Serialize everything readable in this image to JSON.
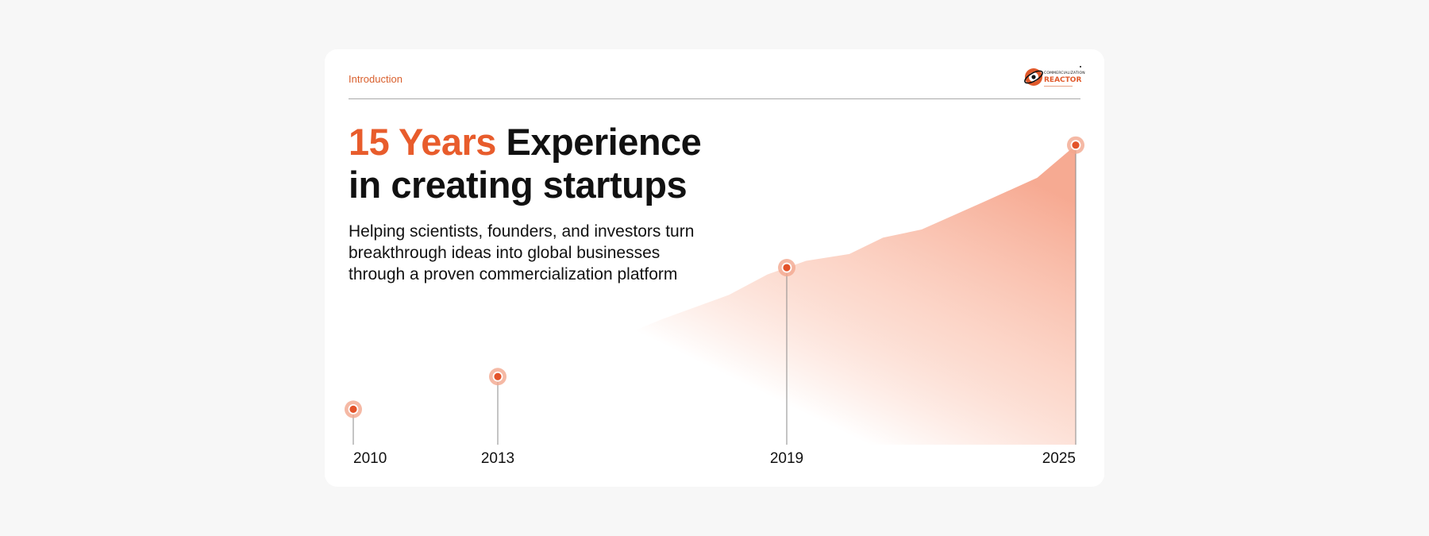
{
  "header": {
    "section_label": "Introduction",
    "logo_text_top": "COMMERCIALIZATION",
    "logo_text_main": "REACTOR"
  },
  "headline": {
    "accent": "15 Years",
    "rest_line1": " Experience",
    "line2": "in creating startups"
  },
  "subtitle": "Helping scientists, founders, and investors turn breakthrough ideas into global businesses through a proven commercialization platform",
  "colors": {
    "accent": "#e85c2c",
    "area_top": "#f6a58c",
    "text": "#111111",
    "background": "#f7f7f7"
  },
  "chart_data": {
    "type": "area",
    "title": "",
    "xlabel": "",
    "ylabel": "",
    "xlim": [
      2010,
      2025
    ],
    "ylim": [
      0,
      100
    ],
    "x": [
      2010,
      2011,
      2012,
      2012.5,
      2013,
      2013.7,
      2014.4,
      2015.1,
      2016.4,
      2017.8,
      2018.6,
      2019,
      2019.4,
      2020.3,
      2021,
      2021.8,
      2023.2,
      2024.2,
      2025
    ],
    "y": [
      13,
      14,
      16,
      17.5,
      25,
      28.5,
      35,
      36.5,
      46,
      55,
      62.5,
      65,
      67.5,
      70,
      76,
      79,
      90,
      98,
      110
    ],
    "milestones": [
      {
        "label": "2010",
        "x": 2010,
        "y": 13
      },
      {
        "label": "2013",
        "x": 2013,
        "y": 25
      },
      {
        "label": "2019",
        "x": 2019,
        "y": 65
      },
      {
        "label": "2025",
        "x": 2025,
        "y": 110
      }
    ]
  }
}
